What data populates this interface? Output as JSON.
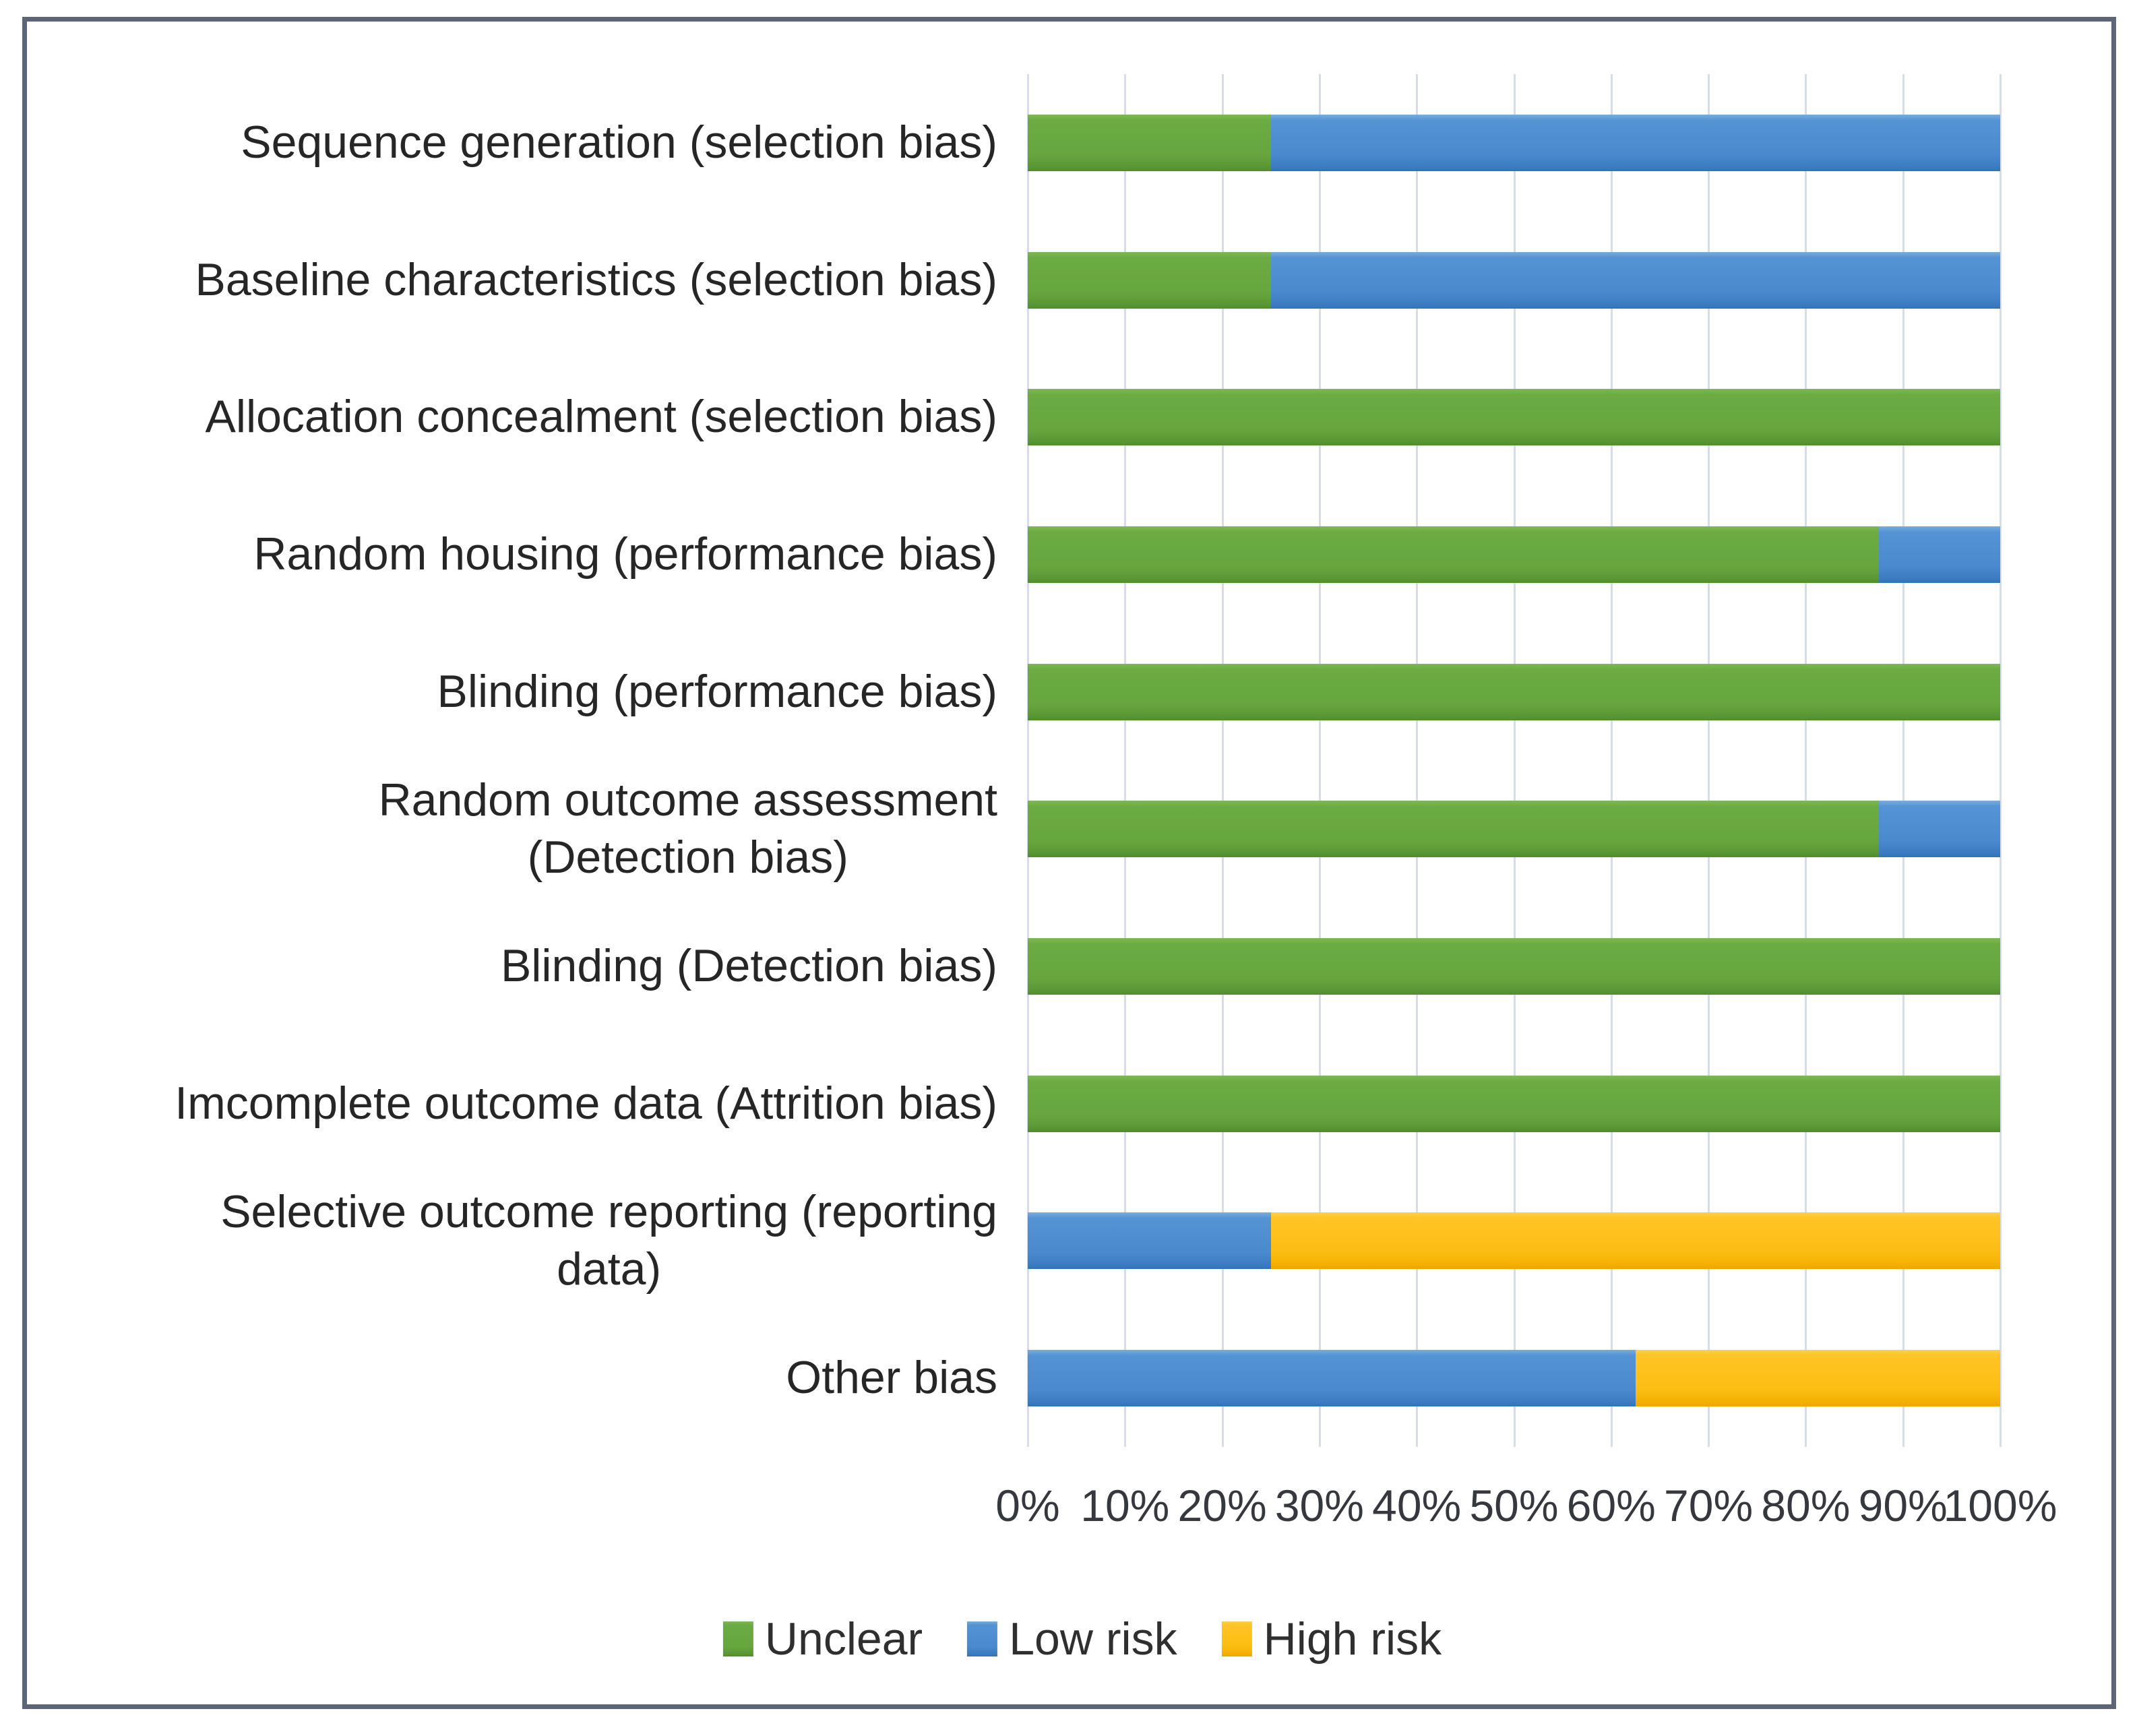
{
  "chart_data": {
    "type": "bar",
    "orientation": "horizontal",
    "stacked": true,
    "unit": "percent",
    "title": "",
    "xlabel": "",
    "ylabel": "",
    "xlim": [
      0,
      100
    ],
    "grid": "vertical",
    "legend_position": "bottom",
    "categories": [
      "Sequence generation (selection bias)",
      "Baseline characteristics (selection bias)",
      "Allocation concealment (selection bias)",
      "Random housing (performance bias)",
      "Blinding (performance bias)",
      "Random outcome assessment\n(Detection bias)",
      "Blinding (Detection bias)",
      "Imcomplete outcome data (Attrition bias)",
      "Selective outcome reporting (reporting\ndata)",
      "Other bias"
    ],
    "series": [
      {
        "name": "Unclear",
        "color": "#6BA843",
        "values": [
          25,
          25,
          100,
          87.5,
          100,
          87.5,
          100,
          100,
          0,
          0
        ]
      },
      {
        "name": "Low risk",
        "color": "#4A89CD",
        "values": [
          75,
          75,
          0,
          12.5,
          0,
          12.5,
          0,
          0,
          25,
          62.5
        ]
      },
      {
        "name": "High risk",
        "color": "#FCBD12",
        "values": [
          0,
          0,
          0,
          0,
          0,
          0,
          0,
          0,
          75,
          37.5
        ]
      }
    ],
    "x_ticks": [
      "0%",
      "10%",
      "20%",
      "30%",
      "40%",
      "50%",
      "60%",
      "70%",
      "80%",
      "90%",
      "100%"
    ],
    "legend": [
      "Unclear",
      "Low risk",
      "High risk"
    ],
    "colors": {
      "frame_border": "#5d6678",
      "gridline": "#d7dde8",
      "text": "#262626"
    }
  }
}
